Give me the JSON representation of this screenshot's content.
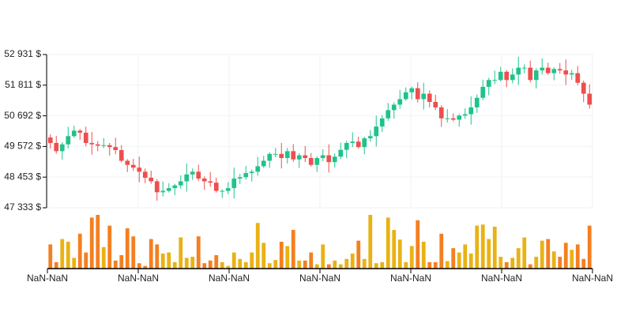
{
  "chart_data": {
    "type": "candlestick",
    "up_color": "#1fc38a",
    "down_color": "#ef4e4e",
    "volume_up_color": "#e9b214",
    "volume_down_color": "#f47f20",
    "grid": true,
    "ylim": [
      47333,
      52931
    ],
    "yticks": [
      {
        "value": 47333,
        "label": "47 333 $"
      },
      {
        "value": 48453,
        "label": "48 453 $"
      },
      {
        "value": 49572,
        "label": "49 572 $"
      },
      {
        "value": 50692,
        "label": "50 692 $"
      },
      {
        "value": 51811,
        "label": "51 811 $"
      },
      {
        "value": 52931,
        "label": "52 931 $"
      }
    ],
    "x_tick_labels": [
      "NaN-NaN",
      "NaN-NaN",
      "NaN-NaN",
      "NaN-NaN",
      "NaN-NaN",
      "NaN-NaN",
      "NaN-NaN"
    ],
    "open": [
      49900,
      49700,
      49400,
      49650,
      49950,
      50150,
      50075,
      49700,
      49650,
      49600,
      49620,
      49550,
      49440,
      49050,
      48900,
      48800,
      48650,
      48430,
      48300,
      47900,
      47950,
      48050,
      48150,
      48300,
      48550,
      48650,
      48400,
      48300,
      48250,
      47950,
      47950,
      48050,
      48400,
      48450,
      48600,
      48650,
      48850,
      49050,
      49300,
      49300,
      49150,
      49400,
      49100,
      49250,
      49150,
      48900,
      49150,
      49250,
      49000,
      49200,
      49450,
      49700,
      49750,
      49550,
      49870,
      49950,
      50300,
      50600,
      50900,
      51100,
      51300,
      51550,
      51700,
      51300,
      51500,
      51200,
      51000,
      50600,
      50600,
      50550,
      50700,
      50750,
      51000,
      51350,
      51750,
      52000,
      52000,
      52300,
      52000,
      52200,
      52450,
      52450,
      52000,
      52350,
      52450,
      52250,
      52400,
      52350,
      52200,
      52250,
      51900,
      51500
    ],
    "high": [
      50020,
      49960,
      49730,
      50290,
      50330,
      50210,
      50295,
      50100,
      49770,
      49880,
      49700,
      49890,
      49620,
      49110,
      49120,
      49200,
      48770,
      48690,
      48380,
      48290,
      48230,
      48210,
      48520,
      48950,
      48770,
      48910,
      48480,
      48640,
      48430,
      48010,
      48270,
      48800,
      48570,
      48860,
      48730,
      49190,
      49230,
      49360,
      49520,
      49700,
      49520,
      49660,
      49330,
      49590,
      49330,
      49210,
      49470,
      49650,
      49320,
      49710,
      49780,
      50090,
      49930,
      49930,
      50170,
      50700,
      50720,
      51160,
      51180,
      51640,
      51730,
      51760,
      51920,
      51900,
      51620,
      51460,
      51080,
      50940,
      50780,
      50760,
      50970,
      51400,
      51470,
      52010,
      52080,
      52340,
      52480,
      52360,
      52420,
      52850,
      52570,
      52710,
      52430,
      52790,
      52630,
      52460,
      52620,
      52750,
      52370,
      52510,
      51980,
      51840
    ],
    "low": [
      49500,
      49310,
      49090,
      49500,
      49890,
      49815,
      49580,
      49270,
      49400,
      49510,
      49240,
      49290,
      48990,
      48640,
      48680,
      48270,
      48230,
      48210,
      47590,
      47750,
      47890,
      47790,
      48030,
      47920,
      48350,
      48310,
      47990,
      48100,
      47890,
      47690,
      47830,
      47670,
      48200,
      48360,
      48290,
      48500,
      48790,
      48790,
      49180,
      48770,
      48950,
      49010,
      48790,
      49000,
      48840,
      48640,
      49030,
      48620,
      48800,
      49110,
      49140,
      49550,
      49490,
      49290,
      49750,
      49570,
      50100,
      50510,
      50590,
      50950,
      51240,
      51290,
      51180,
      50920,
      51000,
      50910,
      50290,
      50450,
      50490,
      50290,
      50580,
      50370,
      50800,
      51260,
      51440,
      51850,
      51940,
      51740,
      51880,
      51820,
      52250,
      51910,
      51690,
      52200,
      52190,
      51990,
      52230,
      51820,
      52000,
      51810,
      51190,
      50950
    ],
    "close": [
      49700,
      49400,
      49650,
      49950,
      50150,
      50075,
      49700,
      49650,
      49600,
      49620,
      49550,
      49440,
      49050,
      48900,
      48800,
      48650,
      48430,
      48300,
      47900,
      47950,
      48050,
      48150,
      48300,
      48550,
      48650,
      48400,
      48300,
      48250,
      47950,
      47950,
      48050,
      48400,
      48450,
      48600,
      48650,
      48850,
      49050,
      49300,
      49300,
      49150,
      49400,
      49100,
      49250,
      49150,
      48900,
      49150,
      49250,
      49000,
      49200,
      49450,
      49700,
      49750,
      49550,
      49870,
      49950,
      50300,
      50600,
      50900,
      51100,
      51300,
      51550,
      51700,
      51300,
      51500,
      51200,
      51000,
      50600,
      50600,
      50550,
      50700,
      50750,
      51000,
      51350,
      51750,
      52000,
      52000,
      52300,
      52000,
      52200,
      52450,
      52450,
      52000,
      52350,
      52450,
      52250,
      52400,
      52350,
      52200,
      52250,
      51900,
      51500,
      51100
    ],
    "volume": [
      45,
      12,
      55,
      50,
      20,
      65,
      30,
      95,
      100,
      40,
      80,
      15,
      25,
      75,
      60,
      10,
      5,
      55,
      45,
      28,
      30,
      12,
      58,
      20,
      22,
      60,
      10,
      15,
      25,
      12,
      5,
      30,
      18,
      12,
      30,
      85,
      48,
      10,
      16,
      50,
      42,
      72,
      15,
      15,
      30,
      8,
      45,
      8,
      15,
      8,
      18,
      28,
      52,
      18,
      100,
      10,
      12,
      95,
      72,
      54,
      12,
      42,
      90,
      50,
      12,
      12,
      65,
      14,
      38,
      30,
      45,
      28,
      80,
      82,
      55,
      78,
      22,
      12,
      20,
      38,
      58,
      8,
      22,
      52,
      55,
      32,
      22,
      48,
      35,
      45,
      18,
      80
    ]
  }
}
